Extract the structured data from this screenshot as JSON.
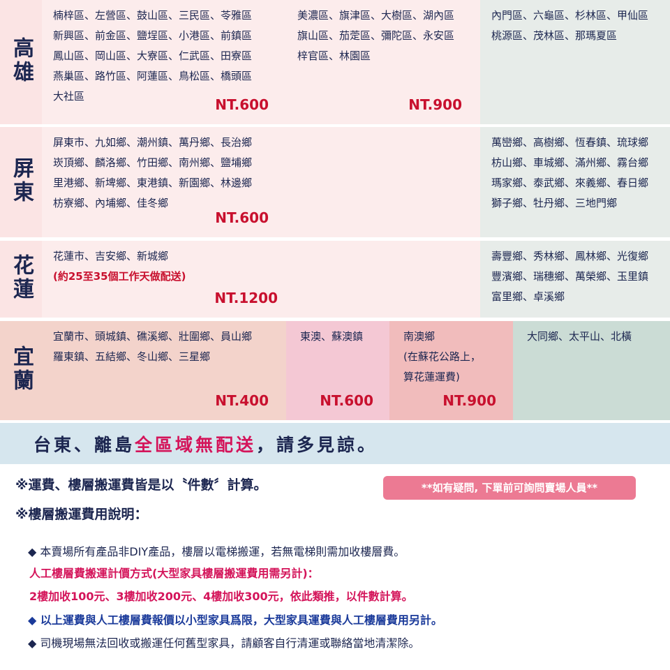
{
  "regions": [
    {
      "label": "高雄",
      "cells": [
        {
          "lines": [
            "楠梓區、左營區、鼓山區、三民區、苓雅區",
            "新興區、前金區、鹽埕區、小港區、前鎮區",
            "鳳山區、岡山區、大寮區、仁武區、田寮區",
            "燕巢區、路竹區、阿蓮區、鳥松區、橋頭區",
            "大社區"
          ],
          "price": "NT.600"
        },
        {
          "lines": [
            "美濃區、旗津區、大樹區、湖內區",
            "旗山區、茄萣區、彌陀區、永安區",
            "梓官區、林園區"
          ],
          "price": "NT.900"
        },
        {
          "lines": [
            "內門區、六龜區、杉林區、甲仙區",
            "桃源區、茂林區、那瑪夏區"
          ]
        }
      ]
    },
    {
      "label": "屏東",
      "cells": [
        {
          "lines": [
            "屏東市、九如鄉、潮州鎮、萬丹鄉、長治鄉",
            "崁頂鄉、麟洛鄉、竹田鄉、南州鄉、鹽埔鄉",
            "里港鄉、新埤鄉、東港鎮、新園鄉、林邊鄉",
            "枋寮鄉、內埔鄉、佳冬鄉"
          ],
          "price": "NT.600"
        },
        {
          "lines": [
            "萬巒鄉、高樹鄉、恆春鎮、琉球鄉",
            "枋山鄉、車城鄉、滿州鄉、霧台鄉",
            "瑪家鄉、泰武鄉、來義鄉、春日鄉",
            "獅子鄉、牡丹鄉、三地門鄉"
          ]
        }
      ]
    },
    {
      "label": "花蓮",
      "cells": [
        {
          "lines": [
            "花蓮市、吉安鄉、新城鄉"
          ],
          "note": "(約25至35個工作天做配送)",
          "price": "NT.1200"
        },
        {
          "lines": [
            "壽豐鄉、秀林鄉、鳳林鄉、光復鄉",
            "豐濱鄉、瑞穗鄉、萬榮鄉、玉里鎮",
            "富里鄉、卓溪鄉"
          ]
        }
      ]
    },
    {
      "label": "宜蘭",
      "cells": [
        {
          "lines": [
            "宜蘭市、頭城鎮、礁溪鄉、壯圍鄉、員山鄉",
            "羅東鎮、五結鄉、冬山鄉、三星鄉"
          ],
          "price": "NT.400"
        },
        {
          "lines": [
            "東澳、蘇澳鎮"
          ],
          "price": "NT.600"
        },
        {
          "lines": [
            "南澳鄉",
            "(在蘇花公路上，",
            "算花蓮運費)"
          ],
          "price": "NT.900"
        },
        {
          "lines": [
            "大同鄉、太平山、北橫"
          ]
        }
      ]
    }
  ],
  "banner": [
    "台東、離島",
    "全區域無配送",
    "，請多見諒。"
  ],
  "notes": {
    "line1": "※運費、樓層搬運費皆是以〝件數〞計算。",
    "badge": "**如有疑問, 下單前可詢問賣場人員**",
    "line2": "※樓層搬運費用說明：",
    "bullets": [
      "◆ 本賣場所有產品非DIY產品，樓層以電梯搬運，若無電梯則需加收樓層費。",
      "人工樓層費搬運計價方式(大型家具樓層搬運費用需另計)：",
      "2樓加收100元、3樓加收200元、4樓加收300元，依此類推，以件數計算。",
      "◆ 以上運費與人工樓層費報價以小型家具爲限，大型家具運費與人工樓層費用另計。",
      "◆ 司機現場無法回收或搬運任何舊型家具，請顧客自行清運或聯絡當地清潔除。"
    ]
  }
}
